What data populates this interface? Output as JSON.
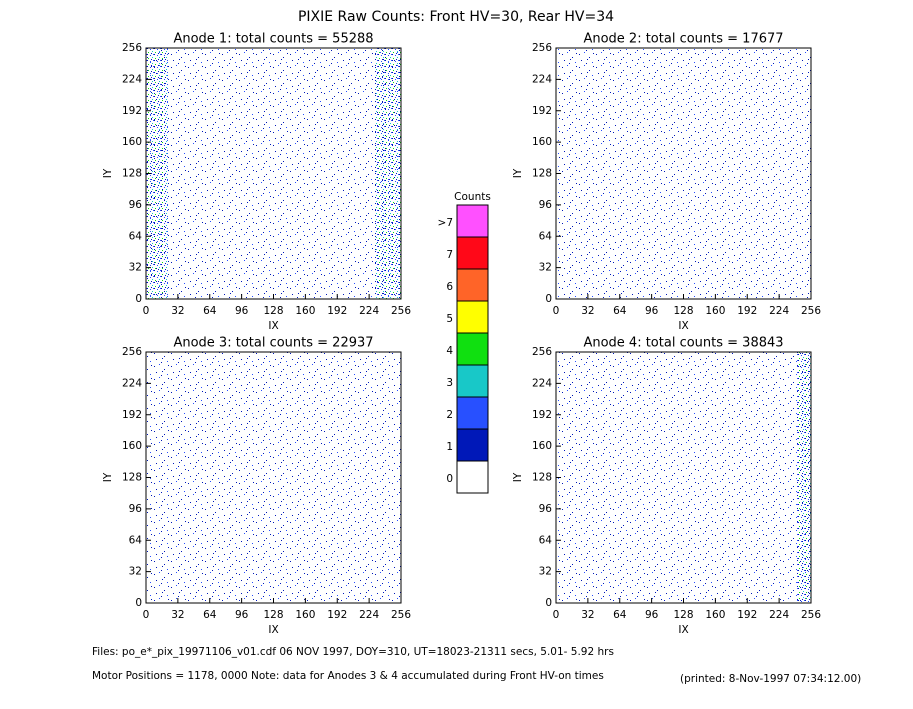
{
  "title": "PIXIE Raw Counts:  Front HV=30, Rear HV=34",
  "chart_data": [
    {
      "type": "heatmap",
      "title": "Anode 1: total counts = 55288",
      "xlabel": "IX",
      "ylabel": "IY",
      "xlim": [
        0,
        256
      ],
      "ylim": [
        0,
        256
      ],
      "xticks": [
        0,
        32,
        64,
        96,
        128,
        160,
        192,
        224,
        256
      ],
      "yticks": [
        0,
        32,
        64,
        96,
        128,
        160,
        192,
        224,
        256
      ]
    },
    {
      "type": "heatmap",
      "title": "Anode 2: total counts = 17677",
      "xlabel": "IX",
      "ylabel": "IY",
      "xlim": [
        0,
        256
      ],
      "ylim": [
        0,
        256
      ],
      "xticks": [
        0,
        32,
        64,
        96,
        128,
        160,
        192,
        224,
        256
      ],
      "yticks": [
        0,
        32,
        64,
        96,
        128,
        160,
        192,
        224,
        256
      ]
    },
    {
      "type": "heatmap",
      "title": "Anode 3: total counts = 22937",
      "xlabel": "IX",
      "ylabel": "IY",
      "xlim": [
        0,
        256
      ],
      "ylim": [
        0,
        256
      ],
      "xticks": [
        0,
        32,
        64,
        96,
        128,
        160,
        192,
        224,
        256
      ],
      "yticks": [
        0,
        32,
        64,
        96,
        128,
        160,
        192,
        224,
        256
      ]
    },
    {
      "type": "heatmap",
      "title": "Anode 4: total counts = 38843",
      "xlabel": "IX",
      "ylabel": "IY",
      "xlim": [
        0,
        256
      ],
      "ylim": [
        0,
        256
      ],
      "xticks": [
        0,
        32,
        64,
        96,
        128,
        160,
        192,
        224,
        256
      ],
      "yticks": [
        0,
        32,
        64,
        96,
        128,
        160,
        192,
        224,
        256
      ]
    }
  ],
  "colorbar": {
    "title": "Counts",
    "levels": [
      {
        "label": "0",
        "color": "#ffffff"
      },
      {
        "label": "1",
        "color": "#0018b8"
      },
      {
        "label": "2",
        "color": "#2850ff"
      },
      {
        "label": "3",
        "color": "#18c8c8"
      },
      {
        "label": "4",
        "color": "#10e010"
      },
      {
        "label": "5",
        "color": "#ffff00"
      },
      {
        "label": "6",
        "color": "#ff6428"
      },
      {
        "label": "7",
        "color": "#ff0818"
      },
      {
        "label": ">7",
        "color": "#ff50ff"
      }
    ]
  },
  "footer": {
    "files": "Files: po_e*_pix_19971106_v01.cdf    06 NOV 1997, DOY=310, UT=18023-21311 secs,  5.01- 5.92 hrs",
    "motor": "Motor Positions = 1178, 0000   Note: data for Anodes 3 & 4 accumulated during Front HV-on times",
    "printed": "(printed:  8-Nov-1997 07:34:12.00)"
  }
}
